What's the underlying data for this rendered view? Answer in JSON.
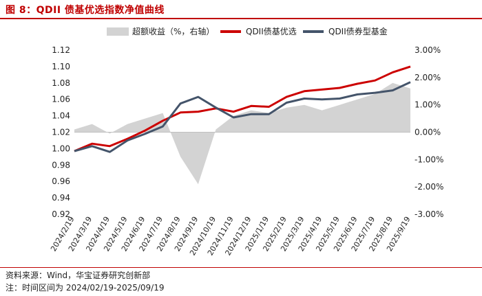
{
  "title": "图 8：QDII 债基优选指数净值曲线",
  "source": "资料来源：Wind，华宝证券研究创新部",
  "note": "注：时间区间为 2024/02/19-2025/09/19",
  "colors": {
    "excess": "#d3d3d3",
    "index": "#cc0000",
    "fund": "#44546a",
    "accent": "#c00000"
  },
  "chart_data": {
    "type": "line",
    "x": [
      "2024/2/19",
      "2024/3/19",
      "2024/4/19",
      "2024/5/19",
      "2024/6/19",
      "2024/7/19",
      "2024/8/19",
      "2024/9/19",
      "2024/10/19",
      "2024/11/19",
      "2024/12/19",
      "2025/1/19",
      "2025/2/19",
      "2025/3/19",
      "2025/4/19",
      "2025/5/19",
      "2025/6/19",
      "2025/7/19",
      "2025/8/19",
      "2025/9/19"
    ],
    "y_left_ticks": [
      "0.92",
      "0.94",
      "0.96",
      "0.98",
      "1.00",
      "1.02",
      "1.04",
      "1.06",
      "1.08",
      "1.10",
      "1.12"
    ],
    "y_right_ticks": [
      "-3.00%",
      "-2.00%",
      "-1.00%",
      "0.00%",
      "1.00%",
      "2.00%",
      "3.00%"
    ],
    "ylim": [
      0.92,
      1.12
    ],
    "ylim_right": [
      -3.0,
      3.0
    ],
    "grid": false,
    "legend_position": "top",
    "series": [
      {
        "name": "超额收益（%，右轴）",
        "type": "area",
        "axis": "right",
        "values": [
          0.1,
          0.3,
          -0.05,
          0.3,
          0.5,
          0.7,
          -0.9,
          -1.9,
          0.1,
          0.6,
          0.8,
          0.7,
          0.9,
          1.0,
          0.8,
          1.0,
          1.2,
          1.4,
          1.8,
          1.6
        ]
      },
      {
        "name": "QDII债基优选",
        "type": "line",
        "axis": "left",
        "values": [
          0.997,
          1.006,
          1.003,
          1.012,
          1.022,
          1.034,
          1.044,
          1.045,
          1.049,
          1.045,
          1.052,
          1.051,
          1.063,
          1.07,
          1.072,
          1.074,
          1.079,
          1.083,
          1.093,
          1.1
        ]
      },
      {
        "name": "QDII债券型基金",
        "type": "line",
        "axis": "left",
        "values": [
          0.997,
          1.003,
          0.996,
          1.01,
          1.018,
          1.027,
          1.055,
          1.063,
          1.05,
          1.038,
          1.042,
          1.042,
          1.056,
          1.061,
          1.06,
          1.061,
          1.066,
          1.068,
          1.071,
          1.081
        ]
      }
    ]
  }
}
